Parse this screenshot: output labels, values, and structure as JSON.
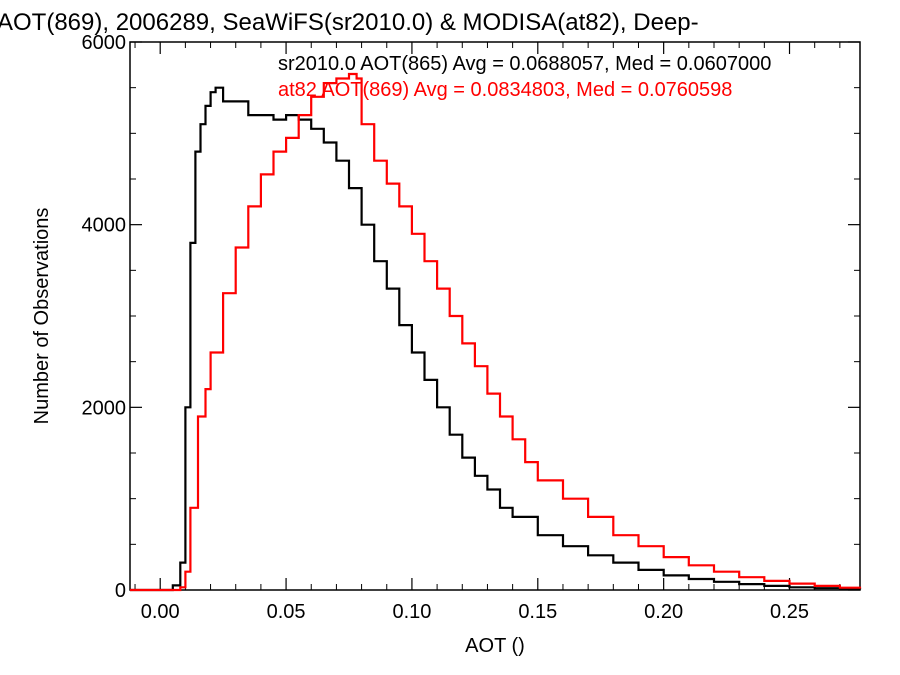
{
  "chart_data": {
    "type": "line",
    "title": "AOT(869), 2006289, SeaWiFS(sr2010.0) & MODISA(at82), Deep-",
    "xlabel": "AOT ()",
    "ylabel": "Number of Observations",
    "xlim": [
      -0.012,
      0.278
    ],
    "ylim": [
      0,
      6000
    ],
    "x_ticks": [
      0.0,
      0.05,
      0.1,
      0.15,
      0.2,
      0.25
    ],
    "x_tick_labels": [
      "0.00",
      "0.05",
      "0.10",
      "0.15",
      "0.20",
      "0.25"
    ],
    "y_ticks": [
      0,
      2000,
      4000,
      6000
    ],
    "y_tick_labels": [
      "0",
      "2000",
      "4000",
      "6000"
    ],
    "grid": false,
    "series": [
      {
        "name": "sr2010.0 AOT(865)",
        "stats_text": "sr2010.0 AOT(865) Avg = 0.0688057, Med = 0.0607000",
        "color": "#000000",
        "x": [
          -0.012,
          0.0,
          0.005,
          0.008,
          0.01,
          0.012,
          0.014,
          0.016,
          0.018,
          0.02,
          0.022,
          0.025,
          0.03,
          0.035,
          0.04,
          0.045,
          0.05,
          0.055,
          0.06,
          0.065,
          0.07,
          0.075,
          0.08,
          0.085,
          0.09,
          0.095,
          0.1,
          0.105,
          0.11,
          0.115,
          0.12,
          0.125,
          0.13,
          0.135,
          0.14,
          0.15,
          0.16,
          0.17,
          0.18,
          0.19,
          0.2,
          0.21,
          0.22,
          0.23,
          0.24,
          0.25,
          0.26,
          0.27,
          0.278
        ],
        "y": [
          0,
          0,
          50,
          300,
          2000,
          3800,
          4800,
          5100,
          5300,
          5450,
          5500,
          5350,
          5350,
          5200,
          5200,
          5150,
          5200,
          5150,
          5050,
          4900,
          4700,
          4400,
          4000,
          3600,
          3300,
          2900,
          2600,
          2300,
          2000,
          1700,
          1450,
          1250,
          1100,
          900,
          800,
          600,
          480,
          380,
          300,
          220,
          160,
          120,
          90,
          65,
          45,
          30,
          20,
          10,
          5
        ]
      },
      {
        "name": "at82 AOT(869)",
        "stats_text": "at82 AOT(869) Avg = 0.0834803, Med = 0.0760598",
        "color": "#ff0000",
        "x": [
          -0.012,
          0.005,
          0.008,
          0.01,
          0.012,
          0.015,
          0.018,
          0.02,
          0.025,
          0.03,
          0.035,
          0.04,
          0.045,
          0.05,
          0.055,
          0.06,
          0.065,
          0.07,
          0.075,
          0.078,
          0.08,
          0.085,
          0.09,
          0.095,
          0.1,
          0.105,
          0.11,
          0.115,
          0.12,
          0.125,
          0.13,
          0.135,
          0.14,
          0.145,
          0.15,
          0.16,
          0.17,
          0.18,
          0.19,
          0.2,
          0.21,
          0.22,
          0.23,
          0.24,
          0.25,
          0.26,
          0.27,
          0.278
        ],
        "y": [
          0,
          0,
          30,
          200,
          900,
          1900,
          2200,
          2600,
          3250,
          3750,
          4200,
          4550,
          4800,
          4950,
          5200,
          5400,
          5550,
          5600,
          5650,
          5600,
          5100,
          4700,
          4450,
          4200,
          3900,
          3600,
          3300,
          3000,
          2700,
          2450,
          2150,
          1900,
          1650,
          1400,
          1200,
          1000,
          800,
          600,
          480,
          360,
          270,
          200,
          140,
          100,
          70,
          45,
          25,
          15
        ]
      }
    ]
  }
}
